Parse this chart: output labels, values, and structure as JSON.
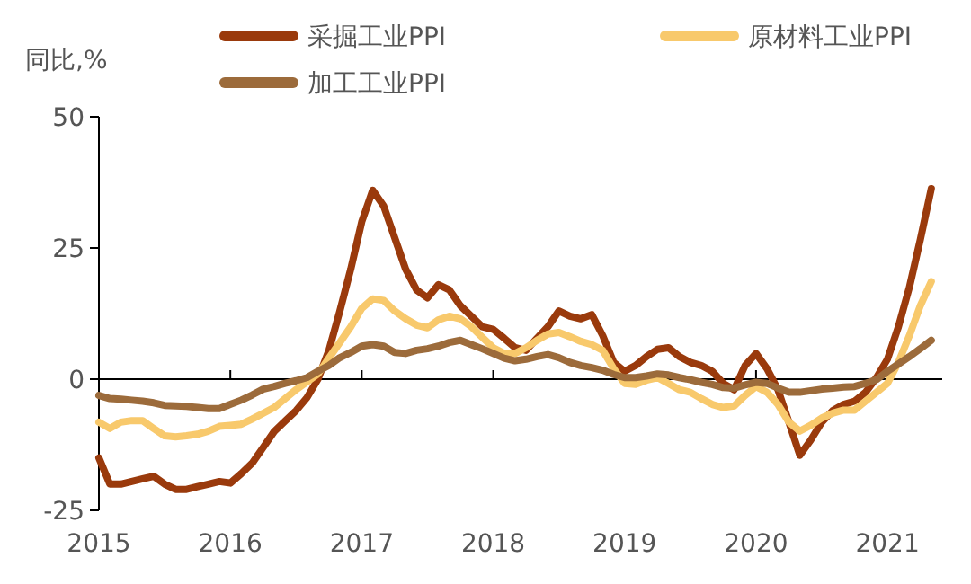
{
  "chart_data": {
    "type": "line",
    "ylabel": "同比,%",
    "x": [
      "2015-01",
      "2015-02",
      "2015-03",
      "2015-04",
      "2015-05",
      "2015-06",
      "2015-07",
      "2015-08",
      "2015-09",
      "2015-10",
      "2015-11",
      "2015-12",
      "2016-01",
      "2016-02",
      "2016-03",
      "2016-04",
      "2016-05",
      "2016-06",
      "2016-07",
      "2016-08",
      "2016-09",
      "2016-10",
      "2016-11",
      "2016-12",
      "2017-01",
      "2017-02",
      "2017-03",
      "2017-04",
      "2017-05",
      "2017-06",
      "2017-07",
      "2017-08",
      "2017-09",
      "2017-10",
      "2017-11",
      "2017-12",
      "2018-01",
      "2018-02",
      "2018-03",
      "2018-04",
      "2018-05",
      "2018-06",
      "2018-07",
      "2018-08",
      "2018-09",
      "2018-10",
      "2018-11",
      "2018-12",
      "2019-01",
      "2019-02",
      "2019-03",
      "2019-04",
      "2019-05",
      "2019-06",
      "2019-07",
      "2019-08",
      "2019-09",
      "2019-10",
      "2019-11",
      "2019-12",
      "2020-01",
      "2020-02",
      "2020-03",
      "2020-04",
      "2020-05",
      "2020-06",
      "2020-07",
      "2020-08",
      "2020-09",
      "2020-10",
      "2020-11",
      "2020-12",
      "2021-01",
      "2021-02",
      "2021-03",
      "2021-04",
      "2021-05"
    ],
    "series": [
      {
        "name": "采掘工业PPI",
        "color": "#9a3a0c",
        "values": [
          -15,
          -20,
          -20,
          -19.5,
          -19,
          -18.5,
          -20,
          -21,
          -21,
          -20.5,
          -20,
          -19.5,
          -19.8,
          -18,
          -16,
          -13,
          -10,
          -8,
          -6,
          -3.5,
          0,
          5.5,
          13,
          21,
          30,
          36,
          33,
          27,
          21,
          17,
          15.5,
          18,
          17,
          14,
          12,
          10,
          9.5,
          7.8,
          6,
          5.5,
          7.8,
          10,
          13,
          12,
          11.5,
          12.3,
          8.3,
          3.2,
          1.5,
          2.6,
          4.3,
          5.7,
          6,
          4.3,
          3.2,
          2.6,
          1.5,
          -0.8,
          -2,
          2.6,
          4.9,
          2,
          -2,
          -8.2,
          -14.5,
          -11.6,
          -8.2,
          -6,
          -4.8,
          -4.2,
          -2.5,
          0.3,
          3.8,
          10,
          17.5,
          26.6,
          36.3
        ]
      },
      {
        "name": "原材料工业PPI",
        "color": "#f8c96c",
        "values": [
          -8.2,
          -9.4,
          -8.2,
          -7.9,
          -7.9,
          -9.4,
          -10.8,
          -11,
          -10.8,
          -10.5,
          -9.9,
          -9,
          -8.8,
          -8.6,
          -7.6,
          -6.5,
          -5.4,
          -3.7,
          -2,
          -0.5,
          1,
          4,
          7,
          10,
          13.5,
          15.3,
          15,
          13,
          11.5,
          10.3,
          9.8,
          11.3,
          12,
          11.5,
          10,
          8,
          6,
          4.9,
          4.9,
          6,
          7.4,
          8.6,
          8.9,
          8.1,
          7.2,
          6.6,
          5.5,
          2,
          -0.8,
          -1,
          -0.2,
          0.3,
          -0.8,
          -2,
          -2.5,
          -3.7,
          -4.8,
          -5.4,
          -5.1,
          -3.1,
          -1.4,
          -2.5,
          -4.8,
          -8.2,
          -9.9,
          -8.8,
          -7.4,
          -6.5,
          -5.9,
          -5.9,
          -4.2,
          -2.5,
          -0.8,
          3.2,
          8.3,
          14,
          18.6
        ]
      },
      {
        "name": "加工工业PPI",
        "color": "#9c6b3b",
        "values": [
          -3.1,
          -3.7,
          -3.8,
          -4,
          -4.2,
          -4.5,
          -5,
          -5.1,
          -5.2,
          -5.4,
          -5.6,
          -5.6,
          -4.8,
          -4,
          -3,
          -1.9,
          -1.4,
          -0.8,
          -0.3,
          0.3,
          1.5,
          2.6,
          4.1,
          5.1,
          6.3,
          6.6,
          6.3,
          5.1,
          4.9,
          5.5,
          5.8,
          6.3,
          7,
          7.4,
          6.6,
          5.8,
          4.9,
          4,
          3.5,
          3.8,
          4.3,
          4.7,
          4.1,
          3.2,
          2.6,
          2.2,
          1.7,
          0.9,
          0.3,
          0.3,
          0.6,
          1,
          0.8,
          0.3,
          -0.1,
          -0.6,
          -1,
          -1.6,
          -1.7,
          -1.1,
          -0.6,
          -0.8,
          -1.7,
          -2.5,
          -2.5,
          -2.2,
          -1.9,
          -1.7,
          -1.5,
          -1.4,
          -0.8,
          -0.1,
          1.5,
          2.9,
          4.3,
          5.8,
          7.4
        ]
      }
    ],
    "xlim": [
      "2015",
      "2021-06"
    ],
    "xticks": [
      "2015",
      "2016",
      "2017",
      "2018",
      "2019",
      "2020",
      "2021"
    ],
    "ylim": [
      -25,
      50
    ],
    "yticks": [
      -25,
      0,
      25,
      50
    ],
    "legend": "top"
  }
}
